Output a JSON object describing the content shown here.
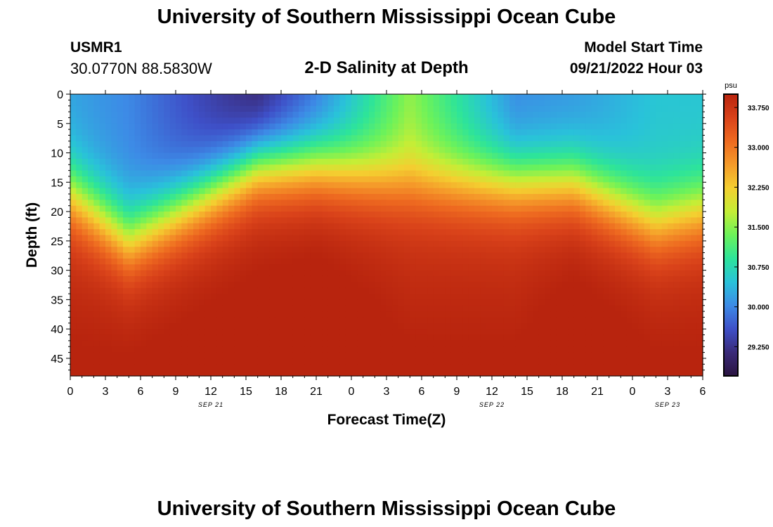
{
  "page": {
    "title": "University of Southern Mississippi Ocean Cube",
    "footer_title": "University of Southern Mississippi Ocean Cube",
    "station_id": "USMR1",
    "station_coords": "30.0770N  88.5830W",
    "plot_title": "2-D Salinity at Depth",
    "model_start_label": "Model Start Time",
    "model_start_value": "09/21/2022 Hour 03"
  },
  "chart_data": {
    "type": "heatmap",
    "title": "2-D Salinity at Depth",
    "xlabel": "Forecast Time(Z)",
    "ylabel": "Depth (ft)",
    "x_ticks": [
      "0",
      "3",
      "6",
      "9",
      "12",
      "15",
      "18",
      "21",
      "0",
      "3",
      "6",
      "9",
      "12",
      "15",
      "18",
      "21",
      "0",
      "3",
      "6"
    ],
    "date_labels": [
      {
        "label": "SEP 21",
        "at_hour": 12
      },
      {
        "label": "SEP 22",
        "at_hour": 36
      },
      {
        "label": "SEP 23",
        "at_hour": 51
      }
    ],
    "x_range_hours": [
      0,
      54
    ],
    "y_ticks": [
      "0",
      "5",
      "10",
      "15",
      "20",
      "25",
      "30",
      "35",
      "40",
      "45"
    ],
    "y_range_ft": [
      0,
      48
    ],
    "colorbar": {
      "unit": "psu",
      "min": 28.7,
      "max": 34.0,
      "ticks": [
        "33.750",
        "33.000",
        "32.250",
        "31.500",
        "30.750",
        "30.000",
        "29.250"
      ],
      "colors": [
        "#2a1440",
        "#3a2a78",
        "#3e50c8",
        "#3d8be6",
        "#29c2da",
        "#2de49a",
        "#6cf25a",
        "#c4ee36",
        "#f4cf30",
        "#f59b2a",
        "#ee6a20",
        "#d9421a",
        "#b8240e"
      ]
    },
    "salinity_profile_samples": [
      {
        "hour": 0,
        "surface": 30.2,
        "halocline_ft": 17,
        "bottom": 33.7
      },
      {
        "hour": 5,
        "surface": 30.0,
        "halocline_ft": 25,
        "bottom": 33.7
      },
      {
        "hour": 16,
        "surface": 29.0,
        "halocline_ft": 12,
        "bottom": 33.85
      },
      {
        "hour": 21,
        "surface": 29.8,
        "halocline_ft": 12,
        "bottom": 33.9
      },
      {
        "hour": 29,
        "surface": 31.5,
        "halocline_ft": 15,
        "bottom": 33.7
      },
      {
        "hour": 38,
        "surface": 30.0,
        "halocline_ft": 15,
        "bottom": 33.7
      },
      {
        "hour": 43,
        "surface": 30.1,
        "halocline_ft": 15,
        "bottom": 33.85
      },
      {
        "hour": 50,
        "surface": 30.5,
        "halocline_ft": 22,
        "bottom": 33.7
      },
      {
        "hour": 54,
        "surface": 30.5,
        "halocline_ft": 20,
        "bottom": 33.7
      }
    ]
  }
}
